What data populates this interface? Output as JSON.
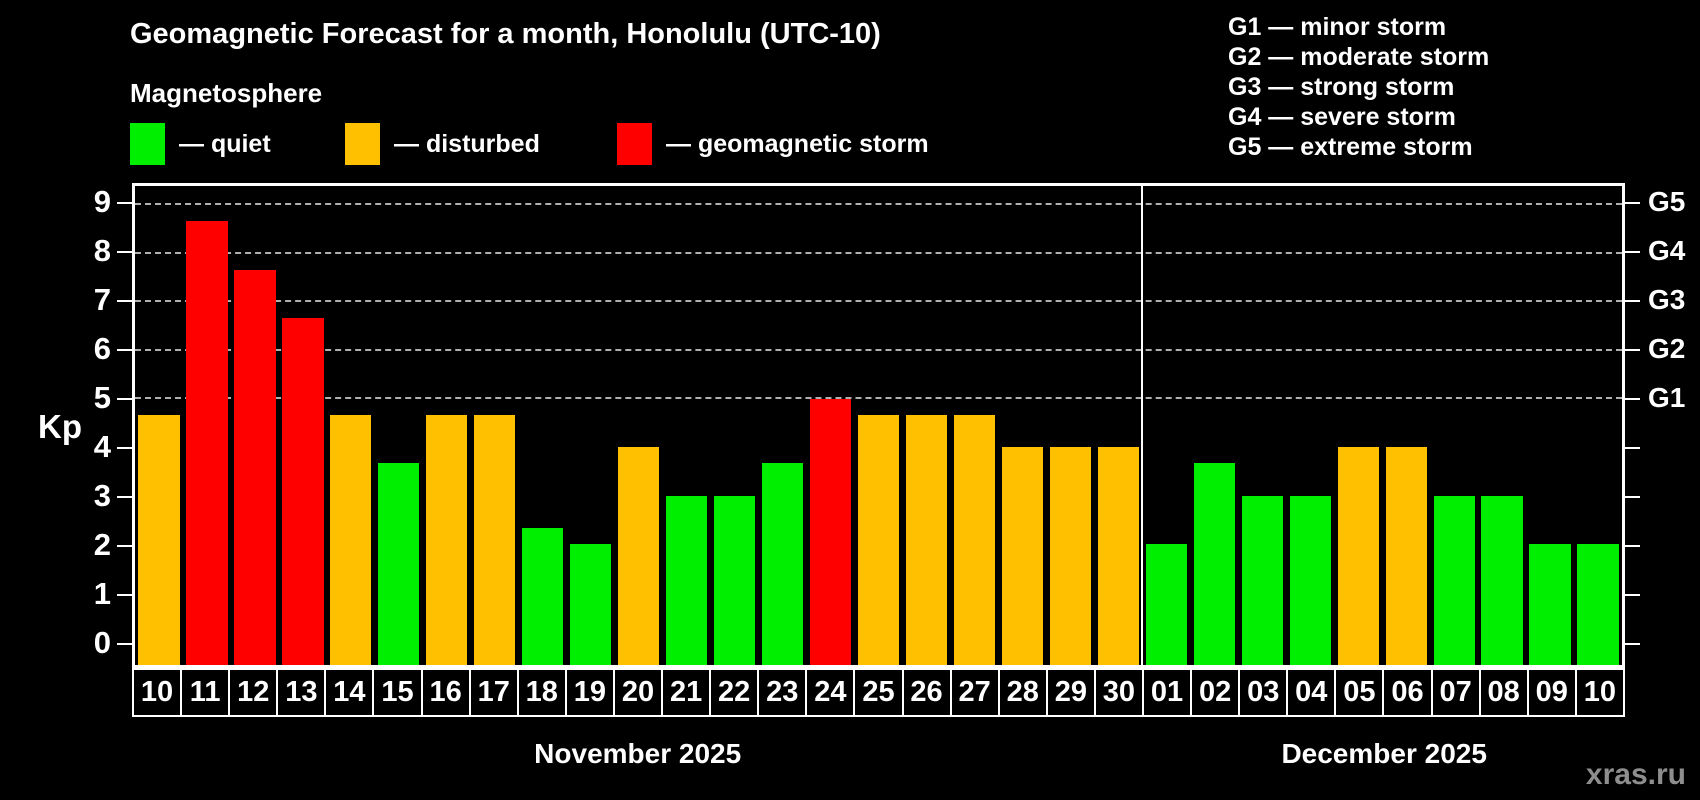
{
  "title": "Geomagnetic Forecast for a month, Honolulu (UTC-10)",
  "subtitle": "Magnetosphere",
  "legend": {
    "items": [
      {
        "key": "quiet",
        "label": "— quiet",
        "color": "#00ee00"
      },
      {
        "key": "disturbed",
        "label": "— disturbed",
        "color": "#ffc000"
      },
      {
        "key": "storm",
        "label": "— geomagnetic storm",
        "color": "#ff0000"
      }
    ]
  },
  "g_scale_legend": [
    "G1 — minor storm",
    "G2 — moderate storm",
    "G3 — strong storm",
    "G4 — severe storm",
    "G5 — extreme storm"
  ],
  "watermark": "xras.ru",
  "chart_data": {
    "type": "bar",
    "title": "Geomagnetic Forecast for a month, Honolulu (UTC-10)",
    "ylabel": "Kp",
    "yticks": [
      0,
      1,
      2,
      3,
      4,
      5,
      6,
      7,
      8,
      9
    ],
    "ylim": [
      -0.5,
      9.4
    ],
    "grid_on": true,
    "grid_values": [
      5,
      6,
      7,
      8,
      9
    ],
    "right_axis_labels": [
      {
        "text": "G1",
        "value": 5
      },
      {
        "text": "G2",
        "value": 6
      },
      {
        "text": "G3",
        "value": 7
      },
      {
        "text": "G4",
        "value": 8
      },
      {
        "text": "G5",
        "value": 9
      }
    ],
    "status_colors": {
      "quiet": "#00ee00",
      "disturbed": "#ffc000",
      "storm": "#ff0000"
    },
    "months": [
      {
        "label": "November 2025",
        "days": [
          {
            "day": "10",
            "kp": 4.67,
            "status": "disturbed"
          },
          {
            "day": "11",
            "kp": 8.67,
            "status": "storm"
          },
          {
            "day": "12",
            "kp": 7.67,
            "status": "storm"
          },
          {
            "day": "13",
            "kp": 6.67,
            "status": "storm"
          },
          {
            "day": "14",
            "kp": 4.67,
            "status": "disturbed"
          },
          {
            "day": "15",
            "kp": 3.67,
            "status": "quiet"
          },
          {
            "day": "16",
            "kp": 4.67,
            "status": "disturbed"
          },
          {
            "day": "17",
            "kp": 4.67,
            "status": "disturbed"
          },
          {
            "day": "18",
            "kp": 2.33,
            "status": "quiet"
          },
          {
            "day": "19",
            "kp": 2.0,
            "status": "quiet"
          },
          {
            "day": "20",
            "kp": 4.0,
            "status": "disturbed"
          },
          {
            "day": "21",
            "kp": 3.0,
            "status": "quiet"
          },
          {
            "day": "22",
            "kp": 3.0,
            "status": "quiet"
          },
          {
            "day": "23",
            "kp": 3.67,
            "status": "quiet"
          },
          {
            "day": "24",
            "kp": 5.0,
            "status": "storm"
          },
          {
            "day": "25",
            "kp": 4.67,
            "status": "disturbed"
          },
          {
            "day": "26",
            "kp": 4.67,
            "status": "disturbed"
          },
          {
            "day": "27",
            "kp": 4.67,
            "status": "disturbed"
          },
          {
            "day": "28",
            "kp": 4.0,
            "status": "disturbed"
          },
          {
            "day": "29",
            "kp": 4.0,
            "status": "disturbed"
          },
          {
            "day": "30",
            "kp": 4.0,
            "status": "disturbed"
          }
        ]
      },
      {
        "label": "December 2025",
        "days": [
          {
            "day": "01",
            "kp": 2.0,
            "status": "quiet"
          },
          {
            "day": "02",
            "kp": 3.67,
            "status": "quiet"
          },
          {
            "day": "03",
            "kp": 3.0,
            "status": "quiet"
          },
          {
            "day": "04",
            "kp": 3.0,
            "status": "quiet"
          },
          {
            "day": "05",
            "kp": 4.0,
            "status": "disturbed"
          },
          {
            "day": "06",
            "kp": 4.0,
            "status": "disturbed"
          },
          {
            "day": "07",
            "kp": 3.0,
            "status": "quiet"
          },
          {
            "day": "08",
            "kp": 3.0,
            "status": "quiet"
          },
          {
            "day": "09",
            "kp": 2.0,
            "status": "quiet"
          },
          {
            "day": "10",
            "kp": 2.0,
            "status": "quiet"
          }
        ]
      }
    ]
  }
}
